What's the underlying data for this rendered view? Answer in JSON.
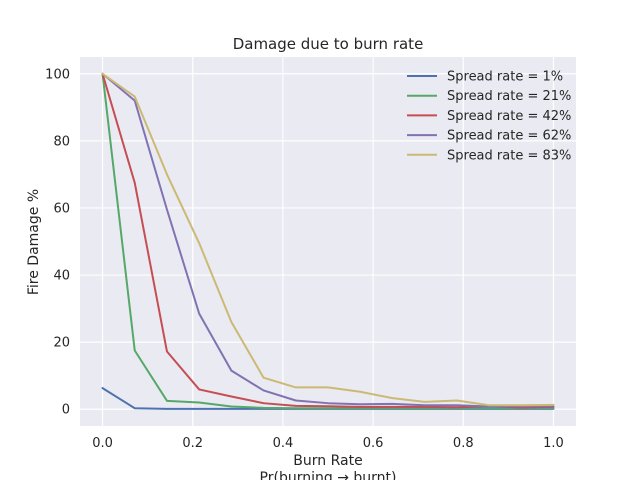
{
  "chart_data": {
    "type": "line",
    "title": "Damage due to burn rate",
    "xlabel": "Burn Rate",
    "xlabel_sub": "Pr(burning → burnt)",
    "ylabel": "Fire Damage %",
    "xlim": [
      -0.05,
      1.05
    ],
    "ylim": [
      -5,
      105
    ],
    "xticks": [
      0.0,
      0.2,
      0.4,
      0.6,
      0.8,
      1.0
    ],
    "xtick_labels": [
      "0.0",
      "0.2",
      "0.4",
      "0.6",
      "0.8",
      "1.0"
    ],
    "yticks": [
      0,
      20,
      40,
      60,
      80,
      100
    ],
    "ytick_labels": [
      "0",
      "20",
      "40",
      "60",
      "80",
      "100"
    ],
    "grid": true,
    "legend_position": "top-right",
    "x": [
      0.0,
      0.0714,
      0.1429,
      0.2143,
      0.2857,
      0.3571,
      0.4286,
      0.5,
      0.5714,
      0.6429,
      0.7143,
      0.7857,
      0.8571,
      0.9286,
      1.0
    ],
    "series": [
      {
        "name": "Spread rate = 1%",
        "color": "#4c72b0",
        "values": [
          6.3,
          0.3,
          0.1,
          0.1,
          0.1,
          0.1,
          0.1,
          0.1,
          0.1,
          0.1,
          0.1,
          0.1,
          0.1,
          0.1,
          0.1
        ]
      },
      {
        "name": "Spread rate = 21%",
        "color": "#55a868",
        "values": [
          100,
          17.5,
          2.5,
          2.0,
          0.8,
          0.4,
          0.3,
          0.3,
          0.3,
          0.3,
          0.3,
          0.3,
          0.3,
          0.3,
          0.3
        ]
      },
      {
        "name": "Spread rate = 42%",
        "color": "#c44e52",
        "values": [
          100,
          67.5,
          17.2,
          5.9,
          3.8,
          1.8,
          1.0,
          0.9,
          0.7,
          0.7,
          0.7,
          0.6,
          0.9,
          0.5,
          0.7
        ]
      },
      {
        "name": "Spread rate = 62%",
        "color": "#8172b2",
        "values": [
          100,
          92.0,
          59.5,
          28.5,
          11.5,
          5.6,
          2.6,
          1.8,
          1.5,
          1.6,
          1.2,
          1.2,
          0.8,
          0.9,
          0.9
        ]
      },
      {
        "name": "Spread rate = 83%",
        "color": "#ccb974",
        "values": [
          100,
          93.2,
          70.0,
          49.5,
          26.0,
          9.4,
          6.5,
          6.5,
          5.2,
          3.3,
          2.2,
          2.6,
          1.2,
          1.2,
          1.3
        ]
      }
    ]
  }
}
